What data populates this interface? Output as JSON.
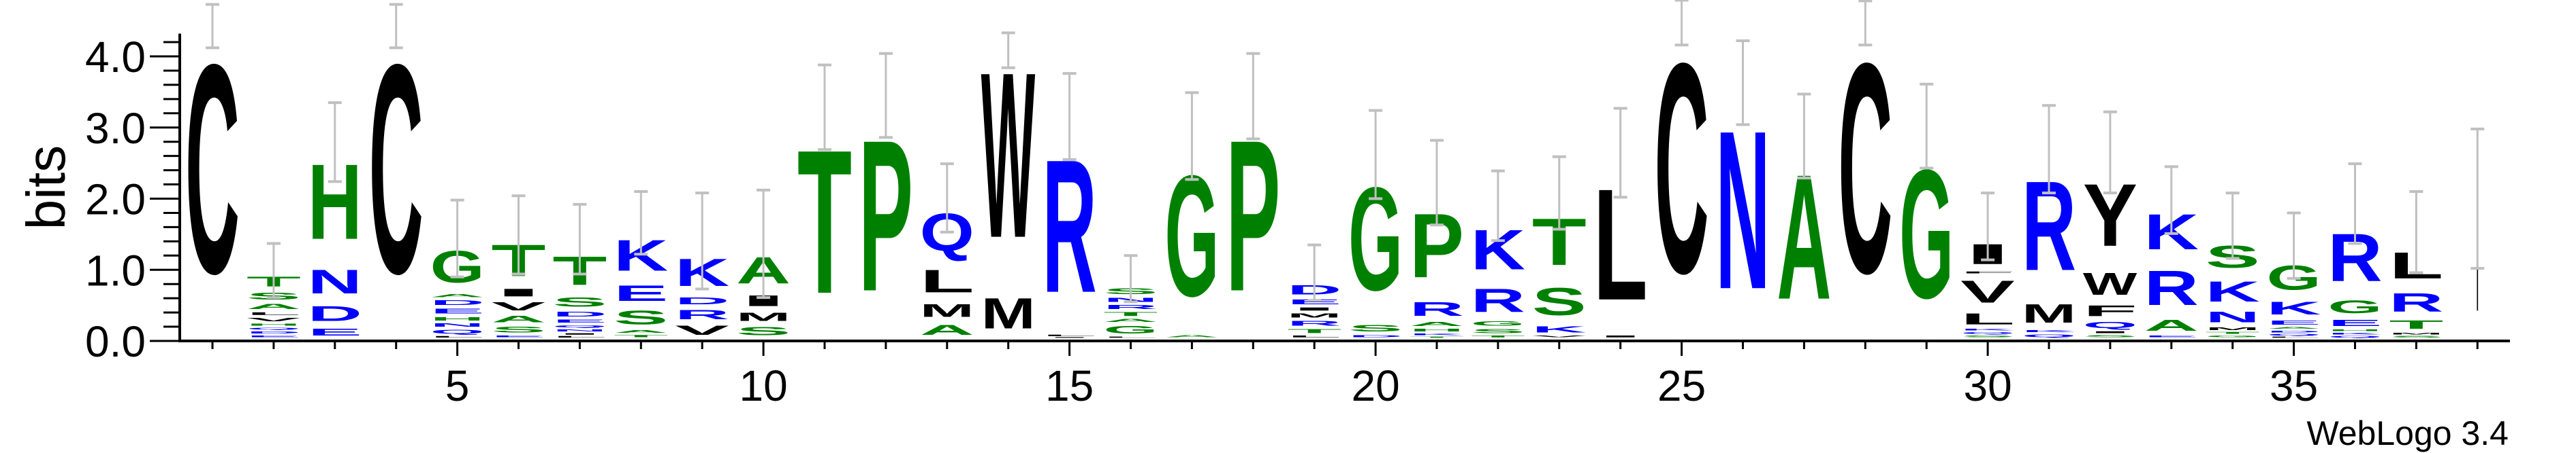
{
  "chart_data": {
    "type": "sequence-logo",
    "ylabel": "bits",
    "ylim": [
      0,
      4.32
    ],
    "y_ticks": [
      "0.0",
      "1.0",
      "2.0",
      "3.0",
      "4.0"
    ],
    "x_range": [
      1,
      38
    ],
    "x_tick_labels": [
      "5",
      "10",
      "15",
      "20",
      "25",
      "30",
      "35"
    ],
    "footer": "WebLogo 3.4",
    "colors": {
      "hydrophobic": "#000000",
      "green_group": "#008000",
      "blue_group": "#0000ff",
      "error_bar": "#c0c0c0"
    },
    "color_groups": {
      "hydrophobic": "CWMLIVFY",
      "green_group": "HGTSAP",
      "blue_group": "NDEKRQ"
    },
    "columns": [
      {
        "pos": 1,
        "stack": [
          [
            "C",
            4.71
          ]
        ],
        "err": [
          4.12,
          4.73
        ]
      },
      {
        "pos": 2,
        "stack": [
          [
            "E",
            0.05
          ],
          [
            "D",
            0.06
          ],
          [
            "Q",
            0.05
          ],
          [
            "H",
            0.06
          ],
          [
            "V",
            0.09
          ],
          [
            "L",
            0.07
          ],
          [
            "A",
            0.13
          ],
          [
            "S",
            0.17
          ],
          [
            "T",
            0.23
          ]
        ],
        "err": [
          0.61,
          1.37
        ]
      },
      {
        "pos": 3,
        "stack": [
          [
            "E",
            0.17
          ],
          [
            "D",
            0.35
          ],
          [
            "N",
            0.54
          ],
          [
            "H",
            1.7
          ]
        ],
        "err": [
          2.24,
          3.35
        ]
      },
      {
        "pos": 4,
        "stack": [
          [
            "C",
            4.71
          ]
        ],
        "err": [
          4.12,
          4.73
        ]
      },
      {
        "pos": 5,
        "stack": [
          [
            "L",
            0.04
          ],
          [
            "Q",
            0.1
          ],
          [
            "N",
            0.09
          ],
          [
            "H",
            0.09
          ],
          [
            "E",
            0.12
          ],
          [
            "D",
            0.12
          ],
          [
            "A",
            0.08
          ],
          [
            "G",
            0.72
          ]
        ],
        "err": [
          0.9,
          1.98
        ]
      },
      {
        "pos": 6,
        "stack": [
          [
            "E",
            0.05
          ],
          [
            "S",
            0.14
          ],
          [
            "A",
            0.16
          ],
          [
            "V",
            0.2
          ],
          [
            "I",
            0.18
          ],
          [
            "T",
            0.72
          ]
        ],
        "err": [
          0.94,
          2.04
        ]
      },
      {
        "pos": 7,
        "stack": [
          [
            "L",
            0.04
          ],
          [
            "I",
            0.04
          ],
          [
            "N",
            0.06
          ],
          [
            "Q",
            0.06
          ],
          [
            "E",
            0.08
          ],
          [
            "D",
            0.12
          ],
          [
            "S",
            0.22
          ],
          [
            "T",
            0.65
          ]
        ],
        "err": [
          0.94,
          1.92
        ]
      },
      {
        "pos": 8,
        "stack": [
          [
            "T",
            0.06
          ],
          [
            "A",
            0.07
          ],
          [
            "S",
            0.32
          ],
          [
            "E",
            0.36
          ],
          [
            "K",
            0.7
          ]
        ],
        "err": [
          1.22,
          2.1
        ]
      },
      {
        "pos": 9,
        "stack": [
          [
            "V",
            0.22
          ],
          [
            "R",
            0.22
          ],
          [
            "D",
            0.17
          ],
          [
            "K",
            0.62
          ]
        ],
        "err": [
          0.73,
          2.08
        ]
      },
      {
        "pos": 10,
        "stack": [
          [
            "S",
            0.2
          ],
          [
            "M",
            0.2
          ],
          [
            "I",
            0.25
          ],
          [
            "A",
            0.6
          ]
        ],
        "err": [
          0.61,
          2.12
        ]
      },
      {
        "pos": 11,
        "stack": [
          [
            "T",
            3.24
          ]
        ],
        "err": [
          2.69,
          3.88
        ]
      },
      {
        "pos": 12,
        "stack": [
          [
            "P",
            3.41
          ]
        ],
        "err": [
          2.86,
          4.04
        ]
      },
      {
        "pos": 13,
        "stack": [
          [
            "A",
            0.24
          ],
          [
            "M",
            0.3
          ],
          [
            "L",
            0.52
          ],
          [
            "Q",
            0.85
          ]
        ],
        "err": [
          1.53,
          2.49
        ]
      },
      {
        "pos": 14,
        "stack": [
          [
            "M",
            0.69
          ],
          [
            "W",
            3.73
          ]
        ],
        "err": [
          3.84,
          4.33
        ]
      },
      {
        "pos": 15,
        "stack": [
          [
            "I",
            0.02
          ],
          [
            "L",
            0.04
          ],
          [
            "R",
            3.0
          ]
        ],
        "err": [
          2.55,
          3.76
        ]
      },
      {
        "pos": 16,
        "stack": [
          [
            "L",
            0.03
          ],
          [
            "G",
            0.18
          ],
          [
            "A",
            0.08
          ],
          [
            "T",
            0.1
          ],
          [
            "R",
            0.1
          ],
          [
            "N",
            0.1
          ],
          [
            "S",
            0.14
          ]
        ],
        "err": [
          0.55,
          1.2
        ]
      },
      {
        "pos": 17,
        "stack": [
          [
            "A",
            0.06
          ],
          [
            "G",
            2.73
          ]
        ],
        "err": [
          2.27,
          3.49
        ]
      },
      {
        "pos": 18,
        "stack": [
          [
            "P",
            3.41
          ]
        ],
        "err": [
          2.84,
          4.04
        ]
      },
      {
        "pos": 19,
        "stack": [
          [
            "L",
            0.05
          ],
          [
            "T",
            0.1
          ],
          [
            "R",
            0.12
          ],
          [
            "M",
            0.1
          ],
          [
            "I",
            0.08
          ],
          [
            "E",
            0.12
          ],
          [
            "D",
            0.22
          ]
        ],
        "err": [
          0.57,
          1.35
        ]
      },
      {
        "pos": 20,
        "stack": [
          [
            "D",
            0.06
          ],
          [
            "S",
            0.16
          ],
          [
            "G",
            2.33
          ]
        ],
        "err": [
          2.0,
          3.24
        ]
      },
      {
        "pos": 21,
        "stack": [
          [
            "T",
            0.03
          ],
          [
            "K",
            0.05
          ],
          [
            "H",
            0.07
          ],
          [
            "A",
            0.1
          ],
          [
            "R",
            0.32
          ],
          [
            "P",
            1.45
          ]
        ],
        "err": [
          1.63,
          2.82
        ]
      },
      {
        "pos": 22,
        "stack": [
          [
            "T",
            0.05
          ],
          [
            "S",
            0.1
          ],
          [
            "G",
            0.11
          ],
          [
            "R",
            0.53
          ],
          [
            "K",
            0.9
          ]
        ],
        "err": [
          1.41,
          2.39
        ]
      },
      {
        "pos": 23,
        "stack": [
          [
            "V",
            0.05
          ],
          [
            "K",
            0.15
          ],
          [
            "S",
            0.62
          ],
          [
            "T",
            1.06
          ]
        ],
        "err": [
          1.57,
          2.59
        ]
      },
      {
        "pos": 24,
        "stack": [
          [
            "I",
            0.05
          ],
          [
            "L",
            2.51
          ]
        ],
        "err": [
          2.02,
          3.27
        ]
      },
      {
        "pos": 25,
        "stack": [
          [
            "C",
            4.73
          ]
        ],
        "err": [
          4.16,
          4.79
        ]
      },
      {
        "pos": 26,
        "stack": [
          [
            "N",
            3.57
          ]
        ],
        "err": [
          3.04,
          4.22
        ]
      },
      {
        "pos": 27,
        "stack": [
          [
            "A",
            2.82
          ]
        ],
        "err": [
          2.29,
          3.47
        ]
      },
      {
        "pos": 28,
        "stack": [
          [
            "C",
            4.73
          ]
        ],
        "err": [
          4.16,
          4.78
        ]
      },
      {
        "pos": 29,
        "stack": [
          [
            "G",
            2.9
          ]
        ],
        "err": [
          2.43,
          3.61
        ]
      },
      {
        "pos": 30,
        "stack": [
          [
            "S",
            0.05
          ],
          [
            "Q",
            0.05
          ],
          [
            "K",
            0.04
          ],
          [
            "L",
            0.26
          ],
          [
            "V",
            0.5
          ],
          [
            "F",
            0.05
          ],
          [
            "I",
            0.46
          ]
        ],
        "err": [
          1.14,
          2.08
        ]
      },
      {
        "pos": 31,
        "stack": [
          [
            "Q",
            0.07
          ],
          [
            "K",
            0.06
          ],
          [
            "M",
            0.43
          ],
          [
            "R",
            2.02
          ]
        ],
        "err": [
          2.08,
          3.31
        ]
      },
      {
        "pos": 32,
        "stack": [
          [
            "S",
            0.06
          ],
          [
            "I",
            0.05
          ],
          [
            "Q",
            0.15
          ],
          [
            "F",
            0.25
          ],
          [
            "W",
            0.51
          ],
          [
            "Y",
            1.41
          ]
        ],
        "err": [
          2.08,
          3.22
        ]
      },
      {
        "pos": 33,
        "stack": [
          [
            "E",
            0.05
          ],
          [
            "A",
            0.26
          ],
          [
            "R",
            0.78
          ],
          [
            "K",
            0.8
          ]
        ],
        "err": [
          1.51,
          2.45
        ]
      },
      {
        "pos": 34,
        "stack": [
          [
            "G",
            0.05
          ],
          [
            "T",
            0.05
          ],
          [
            "M",
            0.07
          ],
          [
            "N",
            0.25
          ],
          [
            "K",
            0.47
          ],
          [
            "S",
            0.5
          ]
        ],
        "err": [
          1.16,
          2.08
        ]
      },
      {
        "pos": 35,
        "stack": [
          [
            "L",
            0.03
          ],
          [
            "Q",
            0.04
          ],
          [
            "D",
            0.05
          ],
          [
            "A",
            0.05
          ],
          [
            "E",
            0.1
          ],
          [
            "K",
            0.3
          ],
          [
            "G",
            0.55
          ]
        ],
        "err": [
          0.88,
          1.8
        ]
      },
      {
        "pos": 36,
        "stack": [
          [
            "Q",
            0.04
          ],
          [
            "K",
            0.05
          ],
          [
            "H",
            0.05
          ],
          [
            "E",
            0.15
          ],
          [
            "G",
            0.3
          ],
          [
            "R",
            1.08
          ]
        ],
        "err": [
          1.37,
          2.49
        ]
      },
      {
        "pos": 37,
        "stack": [
          [
            "S",
            0.04
          ],
          [
            "M",
            0.05
          ],
          [
            "T",
            0.2
          ],
          [
            "R",
            0.43
          ],
          [
            "L",
            0.6
          ]
        ],
        "err": [
          0.96,
          2.1
        ]
      },
      {
        "pos": 38,
        "stack": [
          [
            "I",
            1.96
          ]
        ],
        "err": [
          1.02,
          2.98
        ],
        "weight": 0.04
      }
    ]
  }
}
